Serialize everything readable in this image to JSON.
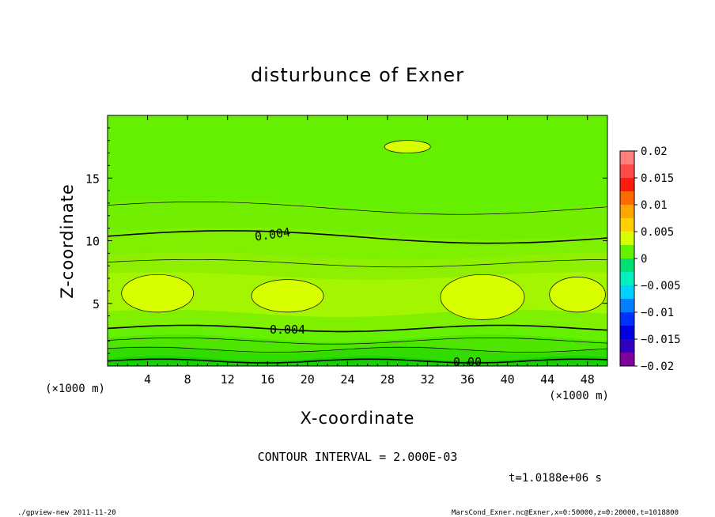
{
  "chart_data": {
    "type": "contour",
    "title": "disturbunce of Exner",
    "xlabel": "X-coordinate",
    "ylabel": "Z-coordinate",
    "x_unit": "(×1000 m)",
    "y_unit": "(×1000 m)",
    "xlim": [
      0,
      50
    ],
    "ylim": [
      0,
      20
    ],
    "x_ticks": [
      4,
      8,
      12,
      16,
      20,
      24,
      28,
      32,
      36,
      40,
      44,
      48
    ],
    "y_ticks": [
      5,
      10,
      15
    ],
    "colorbar": {
      "ticks": [
        "0.02",
        "0.015",
        "0.01",
        "0.005",
        "0",
        "−0.005",
        "−0.01",
        "−0.015",
        "−0.02"
      ],
      "min": -0.02,
      "max": 0.02,
      "levels": 16
    },
    "contour_labels": [
      "0.004",
      "0.004",
      "0.00"
    ],
    "contour_interval_text": "CONTOUR INTERVAL = 2.000E-03",
    "time_text": "t=1.0188e+06 s",
    "footer_left": "./gpview-new 2011-11-20",
    "footer_right": "MarsCond_Exner.nc@Exner,x=0:50000,z=0:20000,t=1018800"
  }
}
